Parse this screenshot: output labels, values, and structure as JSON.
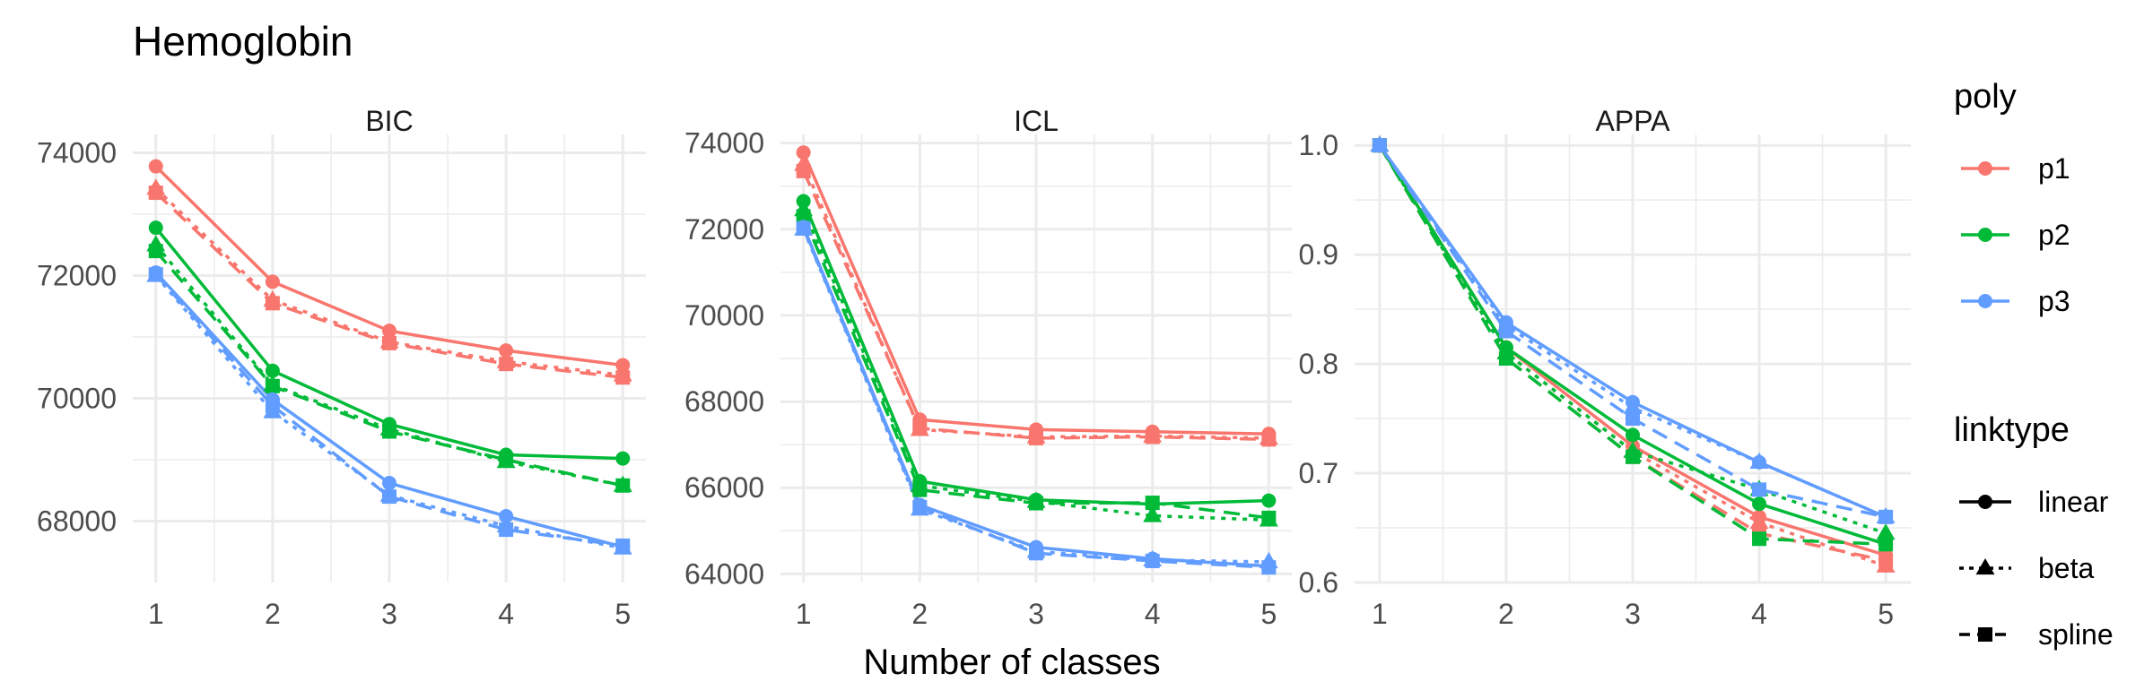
{
  "title": "Hemoglobin",
  "xlabel": "Number of classes",
  "colors": {
    "p1": "#F8766D",
    "p2": "#00BA38",
    "p3": "#619CFF",
    "grid": "#EBEBEB",
    "text": "#4D4D4D"
  },
  "legend": {
    "poly_title": "poly",
    "poly_items": [
      "p1",
      "p2",
      "p3"
    ],
    "linktype_title": "linktype",
    "linktype_items": [
      "linear",
      "beta",
      "spline"
    ]
  },
  "chart_data": [
    {
      "type": "line",
      "panel": "BIC",
      "x": [
        1,
        2,
        3,
        4,
        5
      ],
      "xticks": [
        "1",
        "2",
        "3",
        "4",
        "5"
      ],
      "ylim": [
        67000,
        74300
      ],
      "yticks": [
        68000,
        70000,
        72000,
        74000
      ],
      "ytick_labels": [
        "68000",
        "70000",
        "72000",
        "74000"
      ],
      "series": [
        {
          "poly": "p1",
          "linktype": "linear",
          "values": [
            73780,
            71900,
            71100,
            70780,
            70540
          ]
        },
        {
          "poly": "p1",
          "linktype": "beta",
          "values": [
            73420,
            71600,
            70920,
            70600,
            70380
          ]
        },
        {
          "poly": "p1",
          "linktype": "spline",
          "values": [
            73350,
            71550,
            70900,
            70560,
            70340
          ]
        },
        {
          "poly": "p2",
          "linktype": "linear",
          "values": [
            72780,
            70450,
            69580,
            69080,
            69020
          ]
        },
        {
          "poly": "p2",
          "linktype": "beta",
          "values": [
            72500,
            70220,
            69500,
            68970,
            68580
          ]
        },
        {
          "poly": "p2",
          "linktype": "spline",
          "values": [
            72400,
            70200,
            69460,
            69000,
            68580
          ]
        },
        {
          "poly": "p3",
          "linktype": "linear",
          "values": [
            72050,
            69980,
            68620,
            68080,
            67580
          ]
        },
        {
          "poly": "p3",
          "linktype": "beta",
          "values": [
            72000,
            69780,
            68420,
            67920,
            67560
          ]
        },
        {
          "poly": "p3",
          "linktype": "spline",
          "values": [
            72020,
            69880,
            68400,
            67860,
            67600
          ]
        }
      ]
    },
    {
      "type": "line",
      "panel": "ICL",
      "x": [
        1,
        2,
        3,
        4,
        5
      ],
      "xticks": [
        "1",
        "2",
        "3",
        "4",
        "5"
      ],
      "ylim": [
        63800,
        74200
      ],
      "yticks": [
        64000,
        66000,
        68000,
        70000,
        72000,
        74000
      ],
      "ytick_labels": [
        "64000",
        "66000",
        "68000",
        "70000",
        "72000",
        "74000"
      ],
      "series": [
        {
          "poly": "p1",
          "linktype": "linear",
          "values": [
            73780,
            67580,
            67350,
            67300,
            67250
          ]
        },
        {
          "poly": "p1",
          "linktype": "beta",
          "values": [
            73500,
            67350,
            67180,
            67200,
            67150
          ]
        },
        {
          "poly": "p1",
          "linktype": "spline",
          "values": [
            73350,
            67380,
            67150,
            67180,
            67120
          ]
        },
        {
          "poly": "p2",
          "linktype": "linear",
          "values": [
            72650,
            66150,
            65720,
            65620,
            65700
          ]
        },
        {
          "poly": "p2",
          "linktype": "beta",
          "values": [
            72450,
            66050,
            65680,
            65350,
            65250
          ]
        },
        {
          "poly": "p2",
          "linktype": "spline",
          "values": [
            72300,
            65950,
            65640,
            65650,
            65300
          ]
        },
        {
          "poly": "p3",
          "linktype": "linear",
          "values": [
            72050,
            65600,
            64620,
            64350,
            64180
          ]
        },
        {
          "poly": "p3",
          "linktype": "beta",
          "values": [
            72000,
            65500,
            64520,
            64320,
            64280
          ]
        },
        {
          "poly": "p3",
          "linktype": "spline",
          "values": [
            72020,
            65550,
            64480,
            64300,
            64150
          ]
        }
      ]
    },
    {
      "type": "line",
      "panel": "APPA",
      "x": [
        1,
        2,
        3,
        4,
        5
      ],
      "xticks": [
        "1",
        "2",
        "3",
        "4",
        "5"
      ],
      "ylim": [
        0.6,
        1.01
      ],
      "yticks": [
        0.6,
        0.7,
        0.8,
        0.9,
        1.0
      ],
      "ytick_labels": [
        "0.6",
        "0.7",
        "0.8",
        "0.9",
        "1.0"
      ],
      "series": [
        {
          "poly": "p1",
          "linktype": "linear",
          "values": [
            1.0,
            0.815,
            0.725,
            0.66,
            0.625
          ]
        },
        {
          "poly": "p1",
          "linktype": "beta",
          "values": [
            1.0,
            0.81,
            0.72,
            0.655,
            0.615
          ]
        },
        {
          "poly": "p1",
          "linktype": "spline",
          "values": [
            1.0,
            0.805,
            0.715,
            0.645,
            0.62
          ]
        },
        {
          "poly": "p2",
          "linktype": "linear",
          "values": [
            1.0,
            0.815,
            0.735,
            0.672,
            0.635
          ]
        },
        {
          "poly": "p2",
          "linktype": "beta",
          "values": [
            1.0,
            0.81,
            0.72,
            0.685,
            0.645
          ]
        },
        {
          "poly": "p2",
          "linktype": "spline",
          "values": [
            1.0,
            0.805,
            0.715,
            0.64,
            0.635
          ]
        },
        {
          "poly": "p3",
          "linktype": "linear",
          "values": [
            1.0,
            0.838,
            0.765,
            0.71,
            0.66
          ]
        },
        {
          "poly": "p3",
          "linktype": "beta",
          "values": [
            1.0,
            0.835,
            0.76,
            0.71,
            0.66
          ]
        },
        {
          "poly": "p3",
          "linktype": "spline",
          "values": [
            1.0,
            0.83,
            0.75,
            0.685,
            0.66
          ]
        }
      ]
    }
  ]
}
